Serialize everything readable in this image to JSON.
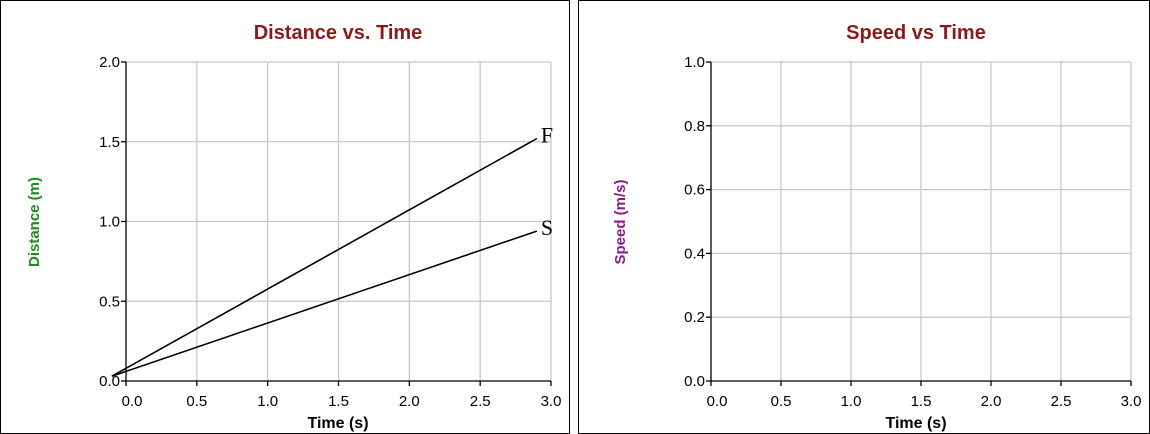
{
  "chart_data": [
    {
      "type": "line",
      "title": "Distance vs. Time",
      "xlabel": "Time (s)",
      "ylabel": "Distance (m)",
      "xlim": [
        0,
        3.0
      ],
      "ylim": [
        0,
        2.0
      ],
      "xticks": [
        "0.0",
        "0.5",
        "1.0",
        "1.5",
        "2.0",
        "2.5",
        "3.0"
      ],
      "yticks": [
        "0.0",
        "0.5",
        "1.0",
        "1.5",
        "2.0"
      ],
      "grid": true,
      "series": [
        {
          "label": "F",
          "x": [
            -0.1,
            2.9
          ],
          "y": [
            0.03,
            1.52
          ]
        },
        {
          "label": "S",
          "x": [
            -0.1,
            2.9
          ],
          "y": [
            0.03,
            0.94
          ]
        }
      ]
    },
    {
      "type": "line",
      "title": "Speed vs Time",
      "xlabel": "Time (s)",
      "ylabel": "Speed (m/s)",
      "xlim": [
        0,
        3.0
      ],
      "ylim": [
        0,
        1.0
      ],
      "xticks": [
        "0.0",
        "0.5",
        "1.0",
        "1.5",
        "2.0",
        "2.5",
        "3.0"
      ],
      "yticks": [
        "0.0",
        "0.2",
        "0.4",
        "0.6",
        "0.8",
        "1.0"
      ],
      "grid": true,
      "series": []
    }
  ],
  "colors": {
    "title": "#8b1a1a",
    "distance_ylabel": "#1f8a1f",
    "speed_ylabel": "#8b1a8b",
    "grid": "#c8c8c8"
  }
}
